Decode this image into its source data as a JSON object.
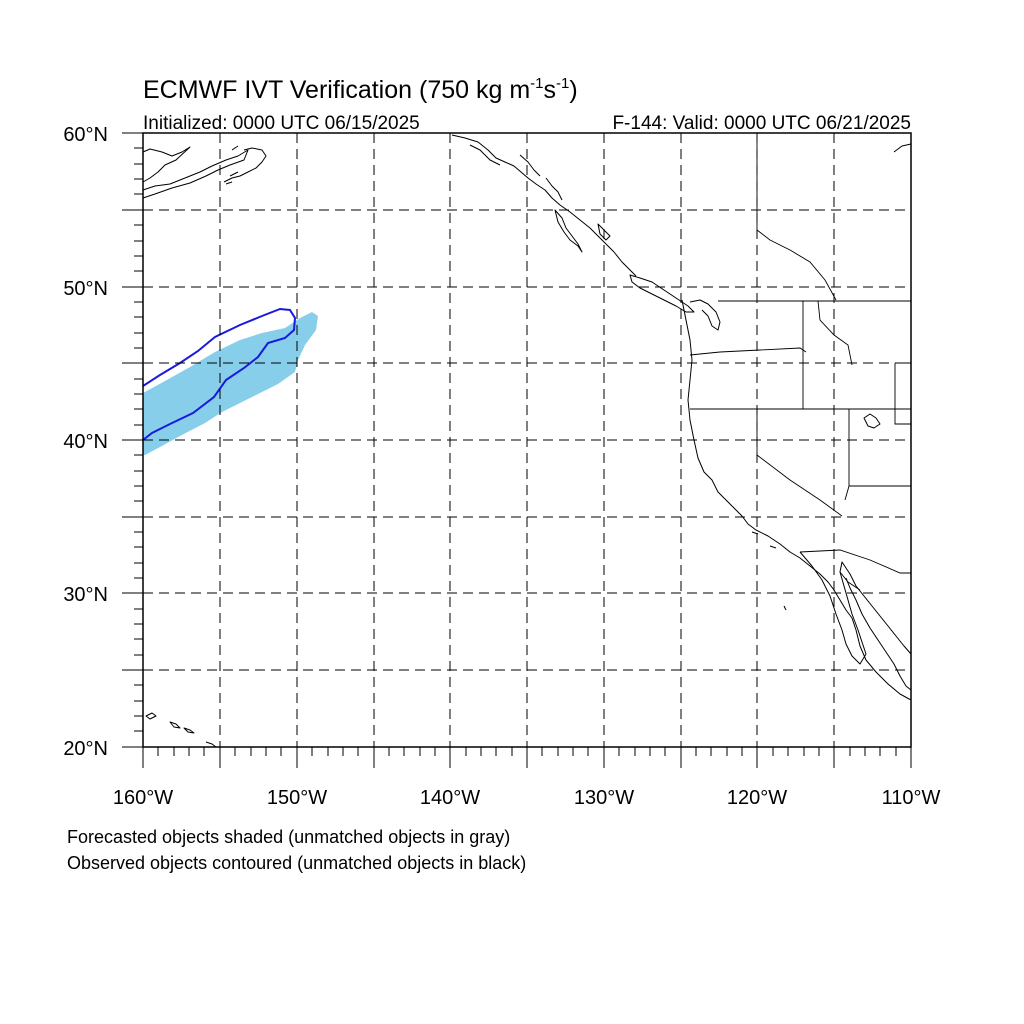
{
  "header": {
    "title_main": "ECMWF IVT Verification (750 kg m",
    "title_sup1": "-1",
    "title_mid": "s",
    "title_sup2": "-1",
    "title_end": ")",
    "initialized": "Initialized: 0000 UTC 06/15/2025",
    "valid": "F-144: Valid: 0000 UTC 06/21/2025"
  },
  "axes": {
    "lat_labels": [
      "60°N",
      "50°N",
      "40°N",
      "30°N",
      "20°N"
    ],
    "lon_labels": [
      "160°W",
      "150°W",
      "140°W",
      "130°W",
      "120°W",
      "110°W"
    ]
  },
  "legend": {
    "line1": "Forecasted objects shaded (unmatched objects in gray)",
    "line2": "Observed objects contoured (unmatched objects in black)"
  },
  "colors": {
    "forecast_fill": "#87ceeb",
    "observed_contour": "#1a1adc",
    "map_lines": "#000000"
  }
}
